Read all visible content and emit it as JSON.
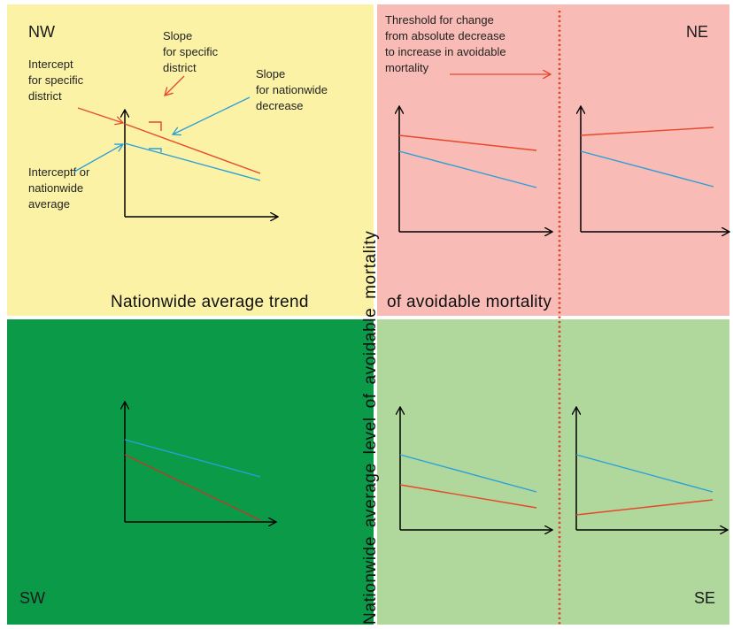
{
  "quadrants": {
    "nw": {
      "label": "NW",
      "color": "#fbf2a6"
    },
    "ne": {
      "label": "NE",
      "color": "#f8bbb5"
    },
    "sw": {
      "label": "SW",
      "color": "#0b9a48"
    },
    "se": {
      "label": "SE",
      "color": "#b0d89c"
    }
  },
  "annotations": {
    "intercept_district": [
      "Intercept",
      "for specific",
      "district"
    ],
    "slope_district": [
      "Slope",
      "for specific",
      "district"
    ],
    "slope_nationwide": [
      "Slope",
      "for nationwide",
      "decrease"
    ],
    "intercept_nationwide": [
      "Interceptf or",
      "nationwide",
      "average"
    ],
    "threshold": [
      "Threshold for change",
      "from absolute decrease",
      "to increase in avoidable",
      "mortality"
    ]
  },
  "axes": {
    "horizontal_left": "Nationwide average trend",
    "horizontal_right": "of avoidable mortality",
    "vertical": "Nationwide average level of avoidable mortality"
  },
  "colors": {
    "district_line": "#e8472a",
    "nationwide_line": "#2a9fd8",
    "threshold_line": "#e0402a",
    "axis": "#000000"
  }
}
